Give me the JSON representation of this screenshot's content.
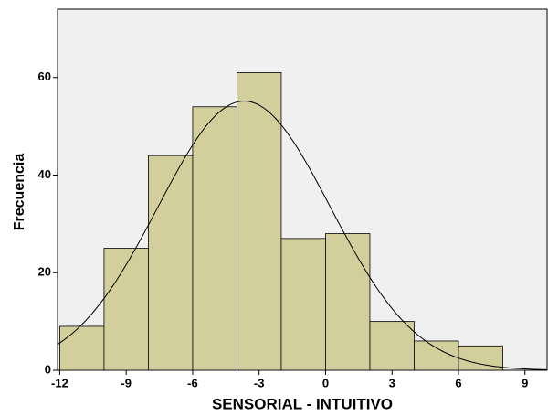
{
  "chart_data": {
    "type": "histogram",
    "x_label": "SENSORIAL - INTUITIVO",
    "y_label": "Frecuencia",
    "bins": [
      -12,
      -10,
      -8,
      -6,
      -4,
      -2,
      0,
      2,
      4,
      6,
      8
    ],
    "values": [
      9,
      25,
      44,
      54,
      61,
      27,
      28,
      10,
      6,
      5
    ],
    "color": "#d3cf9c",
    "xlim": [
      -12.1,
      10
    ],
    "ylim": [
      0,
      74
    ],
    "xticks": [
      -12,
      -9,
      -6,
      -3,
      0,
      3,
      6,
      9
    ],
    "yticks": [
      0,
      20,
      40,
      60
    ],
    "normal_curve": true
  }
}
